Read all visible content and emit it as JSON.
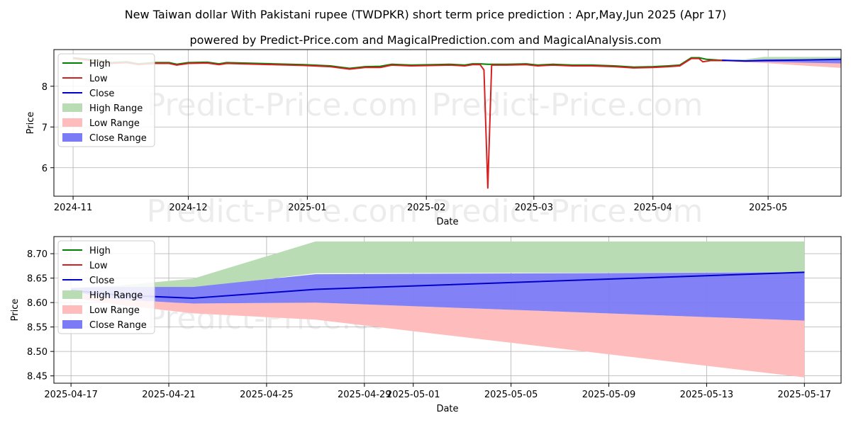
{
  "title": "New Taiwan dollar With Pakistani rupee (TWDPKR) short term price prediction : Apr,May,Jun 2025 (Apr 17)",
  "subtitle": "powered by Predict-Price.com and MagicalPrediction.com and MagicalAnalysis.com",
  "watermark": "Predict-Price.com",
  "colors": {
    "high": "#008000",
    "low": "#d62020",
    "close": "#0000cc",
    "high_range": "#b9dcb5",
    "low_range": "#ffbcbc",
    "close_range": "#7b7bf5",
    "grid": "#b0b0b0"
  },
  "legend": [
    "High",
    "Low",
    "Close",
    "High Range",
    "Low Range",
    "Close Range"
  ],
  "chart_data": [
    {
      "type": "line",
      "name": "history",
      "xlabel": "Date",
      "ylabel": "Price",
      "xlim": [
        -5,
        200
      ],
      "ylim": [
        5.3,
        8.9
      ],
      "x_ticks": [
        {
          "x": 0,
          "label": "2024-11"
        },
        {
          "x": 30,
          "label": "2024-12"
        },
        {
          "x": 61,
          "label": "2025-01"
        },
        {
          "x": 92,
          "label": "2025-02"
        },
        {
          "x": 120,
          "label": "2025-03"
        },
        {
          "x": 151,
          "label": "2025-04"
        },
        {
          "x": 181,
          "label": "2025-05"
        }
      ],
      "y_ticks": [
        6,
        7,
        8
      ],
      "low": [
        [
          0,
          8.68
        ],
        [
          6,
          8.62
        ],
        [
          10,
          8.56
        ],
        [
          14,
          8.58
        ],
        [
          17,
          8.53
        ],
        [
          21,
          8.56
        ],
        [
          25,
          8.56
        ],
        [
          27,
          8.52
        ],
        [
          30,
          8.56
        ],
        [
          35,
          8.57
        ],
        [
          38,
          8.53
        ],
        [
          40,
          8.56
        ],
        [
          52,
          8.53
        ],
        [
          60,
          8.51
        ],
        [
          67,
          8.48
        ],
        [
          72,
          8.42
        ],
        [
          76,
          8.46
        ],
        [
          80,
          8.46
        ],
        [
          83,
          8.52
        ],
        [
          88,
          8.5
        ],
        [
          94,
          8.51
        ],
        [
          98,
          8.52
        ],
        [
          102,
          8.5
        ],
        [
          104,
          8.53
        ],
        [
          106,
          8.53
        ],
        [
          107,
          8.4
        ],
        [
          108,
          5.5
        ],
        [
          109,
          8.52
        ],
        [
          113,
          8.52
        ],
        [
          118,
          8.53
        ],
        [
          121,
          8.5
        ],
        [
          125,
          8.52
        ],
        [
          130,
          8.5
        ],
        [
          135,
          8.5
        ],
        [
          141,
          8.48
        ],
        [
          146,
          8.45
        ],
        [
          151,
          8.46
        ],
        [
          155,
          8.48
        ],
        [
          158,
          8.5
        ],
        [
          161,
          8.68
        ],
        [
          163,
          8.68
        ],
        [
          164,
          8.6
        ],
        [
          166,
          8.63
        ],
        [
          170,
          8.63
        ]
      ],
      "high": [
        [
          0,
          8.7
        ],
        [
          6,
          8.64
        ],
        [
          10,
          8.58
        ],
        [
          14,
          8.6
        ],
        [
          17,
          8.55
        ],
        [
          21,
          8.58
        ],
        [
          25,
          8.58
        ],
        [
          27,
          8.54
        ],
        [
          30,
          8.58
        ],
        [
          35,
          8.59
        ],
        [
          38,
          8.55
        ],
        [
          40,
          8.58
        ],
        [
          52,
          8.55
        ],
        [
          60,
          8.53
        ],
        [
          67,
          8.5
        ],
        [
          72,
          8.44
        ],
        [
          76,
          8.48
        ],
        [
          80,
          8.49
        ],
        [
          83,
          8.54
        ],
        [
          88,
          8.52
        ],
        [
          94,
          8.53
        ],
        [
          98,
          8.54
        ],
        [
          102,
          8.52
        ],
        [
          104,
          8.55
        ],
        [
          106,
          8.55
        ],
        [
          108,
          8.54
        ],
        [
          109,
          8.54
        ],
        [
          113,
          8.54
        ],
        [
          118,
          8.55
        ],
        [
          121,
          8.52
        ],
        [
          125,
          8.54
        ],
        [
          130,
          8.52
        ],
        [
          135,
          8.52
        ],
        [
          141,
          8.5
        ],
        [
          146,
          8.47
        ],
        [
          151,
          8.48
        ],
        [
          155,
          8.5
        ],
        [
          158,
          8.52
        ],
        [
          161,
          8.7
        ],
        [
          163,
          8.7
        ],
        [
          165,
          8.66
        ],
        [
          170,
          8.63
        ]
      ],
      "close": [
        [
          169,
          8.64
        ],
        [
          175,
          8.62
        ],
        [
          180,
          8.63
        ],
        [
          200,
          8.66
        ]
      ],
      "high_range": {
        "x": [
          169,
          175,
          180,
          200
        ],
        "upper": [
          8.64,
          8.66,
          8.72,
          8.72
        ],
        "lower": [
          8.63,
          8.62,
          8.63,
          8.64
        ]
      },
      "low_range": {
        "x": [
          169,
          175,
          180,
          200
        ],
        "upper": [
          8.63,
          8.62,
          8.6,
          8.58
        ],
        "lower": [
          8.61,
          8.59,
          8.57,
          8.45
        ]
      },
      "close_range": {
        "x": [
          169,
          175,
          180,
          200
        ],
        "upper": [
          8.65,
          8.64,
          8.66,
          8.66
        ],
        "lower": [
          8.62,
          8.6,
          8.6,
          8.56
        ]
      }
    },
    {
      "type": "line",
      "name": "forecast",
      "xlabel": "Date",
      "ylabel": "Price",
      "xlim": [
        -0.7,
        31.5
      ],
      "ylim": [
        8.435,
        8.735
      ],
      "x_ticks": [
        {
          "x": 0,
          "label": "2025-04-17"
        },
        {
          "x": 4,
          "label": "2025-04-21"
        },
        {
          "x": 8,
          "label": "2025-04-25"
        },
        {
          "x": 12,
          "label": "2025-04-29"
        },
        {
          "x": 14,
          "label": "2025-05-01"
        },
        {
          "x": 18,
          "label": "2025-05-05"
        },
        {
          "x": 22,
          "label": "2025-05-09"
        },
        {
          "x": 26,
          "label": "2025-05-13"
        },
        {
          "x": 30,
          "label": "2025-05-17"
        }
      ],
      "y_ticks": [
        8.45,
        8.5,
        8.55,
        8.6,
        8.65,
        8.7
      ],
      "close": {
        "x": [
          0,
          2,
          5,
          10,
          30
        ],
        "y": [
          8.625,
          8.615,
          8.609,
          8.627,
          8.662
        ]
      },
      "high_range": {
        "x": [
          0,
          2,
          5,
          10,
          30
        ],
        "upper": [
          8.63,
          8.635,
          8.649,
          8.725,
          8.725
        ],
        "lower": [
          8.62,
          8.62,
          8.63,
          8.66,
          8.662
        ]
      },
      "close_range": {
        "x": [
          0,
          2,
          5,
          10,
          30
        ],
        "upper": [
          8.63,
          8.632,
          8.632,
          8.658,
          8.662
        ],
        "lower": [
          8.622,
          8.606,
          8.598,
          8.6,
          8.563
        ]
      },
      "low_range": {
        "x": [
          0,
          2,
          5,
          10,
          30
        ],
        "upper": [
          8.622,
          8.606,
          8.598,
          8.6,
          8.563
        ],
        "lower": [
          8.61,
          8.595,
          8.578,
          8.565,
          8.447
        ]
      }
    }
  ]
}
